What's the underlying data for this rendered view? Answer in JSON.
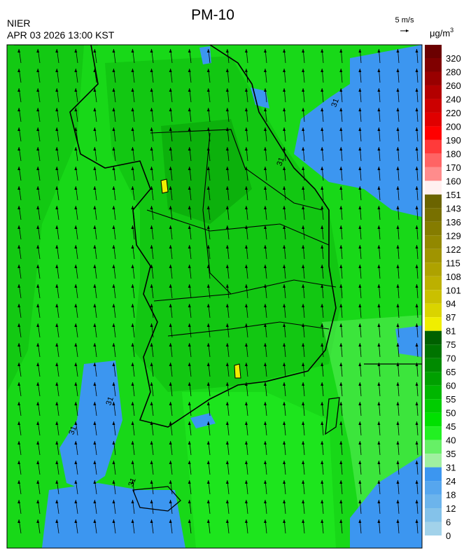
{
  "header": {
    "title": "PM-10",
    "agency": "NIER",
    "datetime": "APR 03 2026 13:00 KST",
    "wind_scale": "5 m/s"
  },
  "colorbar": {
    "unit": "μg/m",
    "unit_sup": "3",
    "levels": [
      320,
      280,
      260,
      240,
      220,
      200,
      190,
      180,
      170,
      160,
      151,
      143,
      136,
      129,
      122,
      115,
      108,
      101,
      94,
      87,
      81,
      75,
      70,
      65,
      60,
      55,
      50,
      45,
      40,
      35,
      31,
      24,
      18,
      12,
      6,
      0
    ],
    "colors": [
      "#6b0000",
      "#800000",
      "#990000",
      "#b30000",
      "#cc0000",
      "#e00000",
      "#ff0000",
      "#ff3a3a",
      "#ff6464",
      "#ff8c8c",
      "#fff0f0",
      "#6b6400",
      "#787000",
      "#857c00",
      "#928800",
      "#a09400",
      "#aea200",
      "#bcb000",
      "#cac000",
      "#dad400",
      "#f0ee00",
      "#006000",
      "#007400",
      "#008a00",
      "#00a000",
      "#00b600",
      "#00cc00",
      "#00e000",
      "#22f022",
      "#66f066",
      "#a0f0a0",
      "#3c96f0",
      "#56a6ee",
      "#6cb4ec",
      "#84c2ea",
      "#a2d2ea"
    ]
  },
  "map": {
    "contour_labels": [
      "31",
      "31",
      "31",
      "31",
      "31"
    ]
  }
}
